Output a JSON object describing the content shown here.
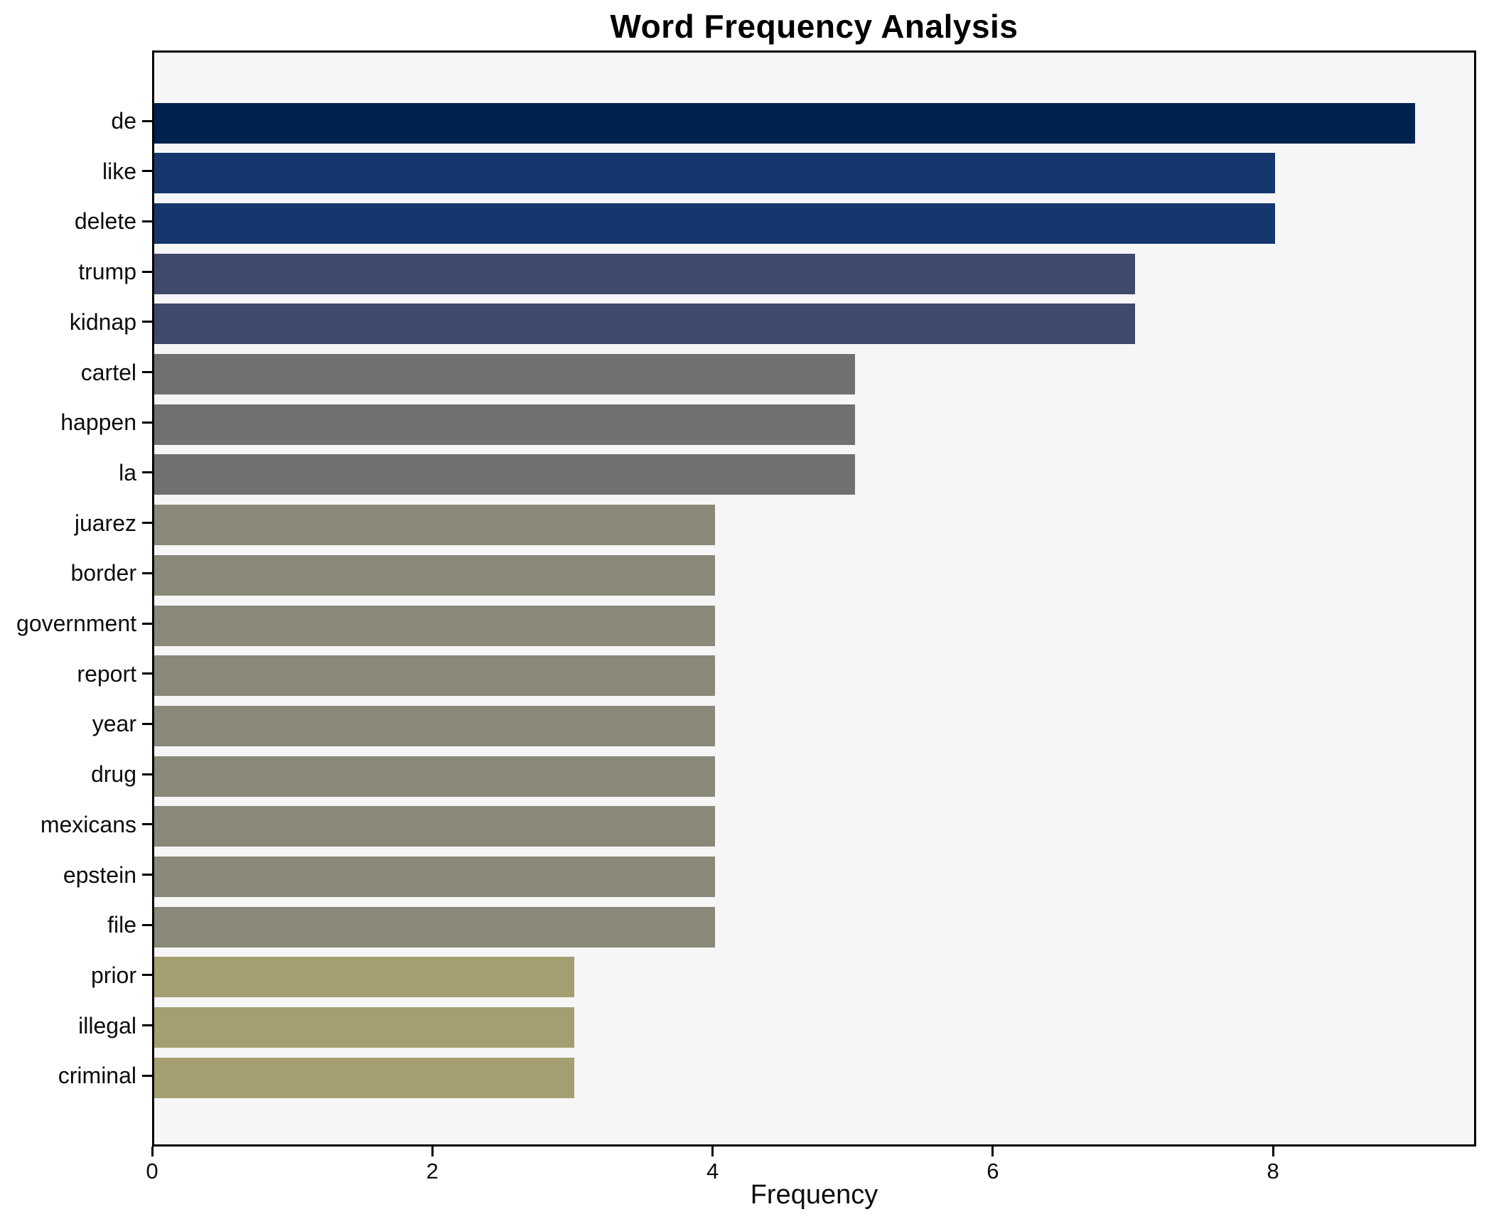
{
  "chart_data": {
    "type": "bar",
    "orientation": "horizontal",
    "title": "Word Frequency Analysis",
    "xlabel": "Frequency",
    "ylabel": "",
    "categories": [
      "de",
      "like",
      "delete",
      "trump",
      "kidnap",
      "cartel",
      "happen",
      "la",
      "juarez",
      "border",
      "government",
      "report",
      "year",
      "drug",
      "mexicans",
      "epstein",
      "file",
      "prior",
      "illegal",
      "criminal"
    ],
    "values": [
      9,
      8,
      8,
      7,
      7,
      5,
      5,
      5,
      4,
      4,
      4,
      4,
      4,
      4,
      4,
      4,
      4,
      3,
      3,
      3
    ],
    "bar_colors": [
      "#00224e",
      "#16376e",
      "#16376e",
      "#3d4a6b",
      "#3d4a6b",
      "#6f7072",
      "#6f7072",
      "#6f7072",
      "#8a8878",
      "#8a8878",
      "#8a8878",
      "#8a8878",
      "#8a8878",
      "#8a8878",
      "#8a8878",
      "#8a8878",
      "#8a8878",
      "#a59e70",
      "#a59e70",
      "#a59e70"
    ],
    "xticks": [
      0,
      2,
      4,
      6,
      8
    ],
    "xlim": [
      0,
      9.45
    ],
    "grid": false,
    "legend": "none",
    "plot_background": "#f6f6f7",
    "figure_background": "#ffffff",
    "colormap_note": "cividis-style shading, darker = higher frequency"
  }
}
